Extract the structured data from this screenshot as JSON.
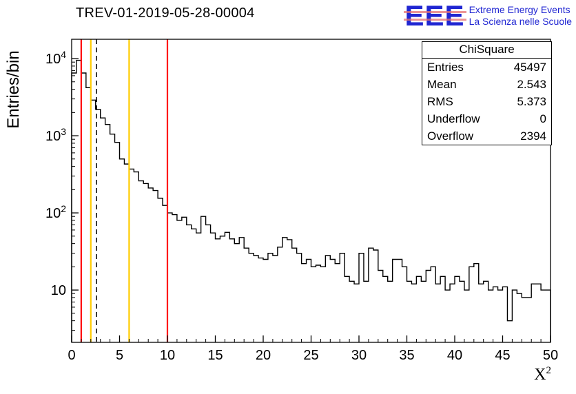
{
  "title": "TREV-01-2019-05-28-00004",
  "logo": {
    "letters": "EEE",
    "line1": "Extreme Energy Events",
    "line2": "La Scienza nelle Scuole"
  },
  "colors": {
    "logo_blue": "#2026d2",
    "logo_stripe": "#e57373",
    "histogram": "#000000",
    "red_line": "#ff0000",
    "yellow_line": "#ffcc00"
  },
  "axis": {
    "ylabel": "Entries/bin",
    "xlabel_base": "X",
    "xlabel_sup": "2"
  },
  "stats": {
    "title": "ChiSquare",
    "rows": [
      {
        "label": "Entries",
        "value": "45497"
      },
      {
        "label": "Mean",
        "value": "2.543"
      },
      {
        "label": "RMS",
        "value": "5.373"
      },
      {
        "label": "Underflow",
        "value": "0"
      },
      {
        "label": "Overflow",
        "value": "2394"
      }
    ]
  },
  "chart_data": {
    "type": "bar",
    "style": "step-histogram",
    "title": "TREV-01-2019-05-28-00004",
    "xlabel": "X^2",
    "ylabel": "Entries/bin",
    "yscale": "log",
    "xlim": [
      0,
      50
    ],
    "ylim": [
      2.1,
      17800
    ],
    "bin_start": 0,
    "bin_width": 0.5,
    "values": [
      6500,
      9500,
      6500,
      4200,
      2900,
      2200,
      1700,
      1400,
      1050,
      820,
      500,
      430,
      370,
      340,
      260,
      240,
      210,
      195,
      155,
      125,
      100,
      95,
      80,
      88,
      70,
      62,
      55,
      90,
      70,
      55,
      46,
      50,
      56,
      46,
      40,
      48,
      35,
      30,
      28,
      26,
      25,
      30,
      28,
      36,
      48,
      45,
      35,
      30,
      22,
      25,
      20,
      21,
      20,
      28,
      25,
      22,
      30,
      15,
      13,
      12,
      30,
      13,
      35,
      33,
      18,
      15,
      13,
      25,
      25,
      20,
      13,
      12,
      15,
      13,
      18,
      20,
      12,
      15,
      10,
      12,
      15,
      13,
      10,
      20,
      22,
      12,
      13,
      10,
      11,
      10,
      11,
      4,
      10,
      9,
      8,
      8,
      12,
      12,
      10,
      10
    ],
    "x_ticks": [
      0,
      5,
      10,
      15,
      20,
      25,
      30,
      35,
      40,
      45,
      50
    ],
    "y_tick_exponents": [
      1,
      2,
      3,
      4
    ],
    "vlines": [
      {
        "x": 1,
        "color": "#ff0000",
        "style": "solid"
      },
      {
        "x": 2,
        "color": "#ffcc00",
        "style": "solid"
      },
      {
        "x": 2.6,
        "color": "#000000",
        "style": "dashed"
      },
      {
        "x": 6,
        "color": "#ffcc00",
        "style": "solid"
      },
      {
        "x": 10,
        "color": "#ff0000",
        "style": "solid"
      }
    ]
  }
}
